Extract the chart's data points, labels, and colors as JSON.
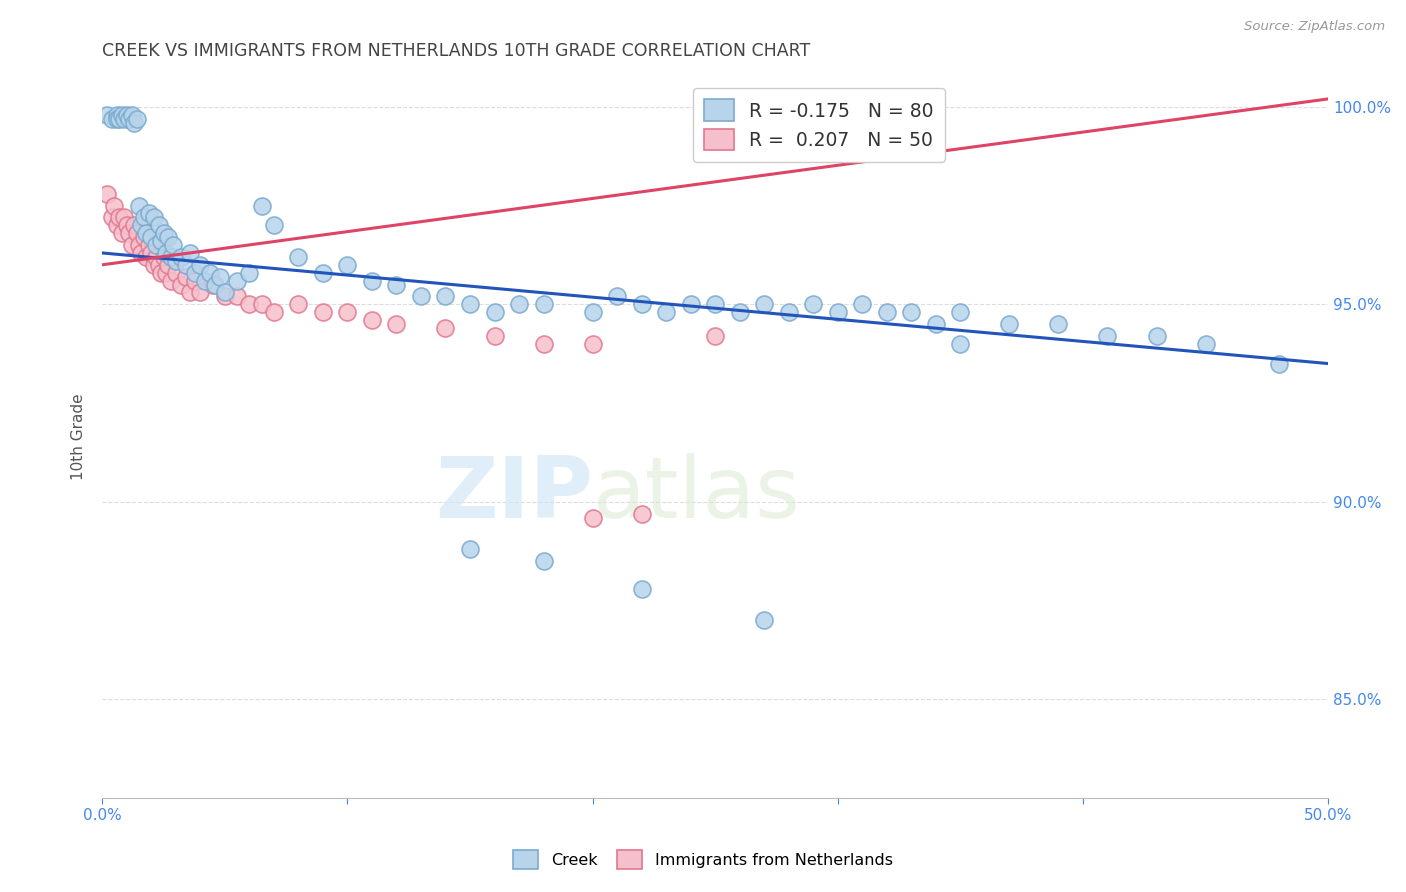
{
  "title": "CREEK VS IMMIGRANTS FROM NETHERLANDS 10TH GRADE CORRELATION CHART",
  "source": "Source: ZipAtlas.com",
  "ylabel": "10th Grade",
  "watermark_zip": "ZIP",
  "watermark_atlas": "atlas",
  "xlim": [
    0.0,
    0.5
  ],
  "ylim": [
    0.825,
    1.008
  ],
  "yticks": [
    0.85,
    0.9,
    0.95,
    1.0
  ],
  "yticklabels": [
    "85.0%",
    "90.0%",
    "95.0%",
    "100.0%"
  ],
  "creek_color": "#b8d4ea",
  "creek_edge": "#7aaad0",
  "netherlands_color": "#f5c0cc",
  "netherlands_edge": "#e07890",
  "creek_line_color": "#2255bb",
  "netherlands_line_color": "#dd4466",
  "background_color": "#ffffff",
  "grid_color": "#dddddd",
  "title_color": "#444444",
  "tick_color": "#4488ee",
  "creek_scatter_x": [
    0.002,
    0.004,
    0.006,
    0.006,
    0.007,
    0.008,
    0.009,
    0.01,
    0.011,
    0.012,
    0.013,
    0.014,
    0.015,
    0.016,
    0.017,
    0.018,
    0.019,
    0.02,
    0.021,
    0.022,
    0.023,
    0.024,
    0.025,
    0.026,
    0.027,
    0.028,
    0.029,
    0.03,
    0.032,
    0.034,
    0.036,
    0.038,
    0.04,
    0.042,
    0.044,
    0.046,
    0.048,
    0.05,
    0.055,
    0.06,
    0.065,
    0.07,
    0.08,
    0.09,
    0.1,
    0.11,
    0.12,
    0.13,
    0.14,
    0.15,
    0.16,
    0.17,
    0.18,
    0.2,
    0.21,
    0.22,
    0.23,
    0.24,
    0.25,
    0.26,
    0.27,
    0.28,
    0.29,
    0.3,
    0.31,
    0.32,
    0.33,
    0.34,
    0.35,
    0.37,
    0.39,
    0.41,
    0.43,
    0.45,
    0.27,
    0.22,
    0.18,
    0.15,
    0.35,
    0.48
  ],
  "creek_scatter_y": [
    0.998,
    0.997,
    0.998,
    0.997,
    0.997,
    0.998,
    0.997,
    0.998,
    0.997,
    0.998,
    0.996,
    0.997,
    0.975,
    0.97,
    0.972,
    0.968,
    0.973,
    0.967,
    0.972,
    0.965,
    0.97,
    0.966,
    0.968,
    0.963,
    0.967,
    0.962,
    0.965,
    0.961,
    0.962,
    0.96,
    0.963,
    0.958,
    0.96,
    0.956,
    0.958,
    0.955,
    0.957,
    0.953,
    0.956,
    0.958,
    0.975,
    0.97,
    0.962,
    0.958,
    0.96,
    0.956,
    0.955,
    0.952,
    0.952,
    0.95,
    0.948,
    0.95,
    0.95,
    0.948,
    0.952,
    0.95,
    0.948,
    0.95,
    0.95,
    0.948,
    0.95,
    0.948,
    0.95,
    0.948,
    0.95,
    0.948,
    0.948,
    0.945,
    0.948,
    0.945,
    0.945,
    0.942,
    0.942,
    0.94,
    0.87,
    0.878,
    0.885,
    0.888,
    0.94,
    0.935
  ],
  "netherlands_scatter_x": [
    0.002,
    0.004,
    0.005,
    0.006,
    0.007,
    0.008,
    0.009,
    0.01,
    0.011,
    0.012,
    0.013,
    0.014,
    0.015,
    0.016,
    0.017,
    0.018,
    0.019,
    0.02,
    0.021,
    0.022,
    0.023,
    0.024,
    0.025,
    0.026,
    0.027,
    0.028,
    0.03,
    0.032,
    0.034,
    0.036,
    0.038,
    0.04,
    0.045,
    0.05,
    0.055,
    0.06,
    0.065,
    0.07,
    0.08,
    0.09,
    0.1,
    0.11,
    0.12,
    0.14,
    0.16,
    0.18,
    0.2,
    0.25,
    0.2,
    0.22
  ],
  "netherlands_scatter_y": [
    0.978,
    0.972,
    0.975,
    0.97,
    0.972,
    0.968,
    0.972,
    0.97,
    0.968,
    0.965,
    0.97,
    0.968,
    0.965,
    0.963,
    0.967,
    0.962,
    0.965,
    0.963,
    0.96,
    0.962,
    0.96,
    0.958,
    0.962,
    0.958,
    0.96,
    0.956,
    0.958,
    0.955,
    0.957,
    0.953,
    0.956,
    0.953,
    0.955,
    0.952,
    0.952,
    0.95,
    0.95,
    0.948,
    0.95,
    0.948,
    0.948,
    0.946,
    0.945,
    0.944,
    0.942,
    0.94,
    0.94,
    0.942,
    0.896,
    0.897
  ],
  "creek_trend_x": [
    0.0,
    0.5
  ],
  "creek_trend_y": [
    0.963,
    0.935
  ],
  "netherlands_trend_x": [
    0.0,
    0.5
  ],
  "netherlands_trend_y": [
    0.96,
    1.002
  ],
  "legend_label_creek": "R = -0.175   N = 80",
  "legend_label_nl": "R =  0.207   N = 50",
  "bottom_label_creek": "Creek",
  "bottom_label_nl": "Immigrants from Netherlands"
}
